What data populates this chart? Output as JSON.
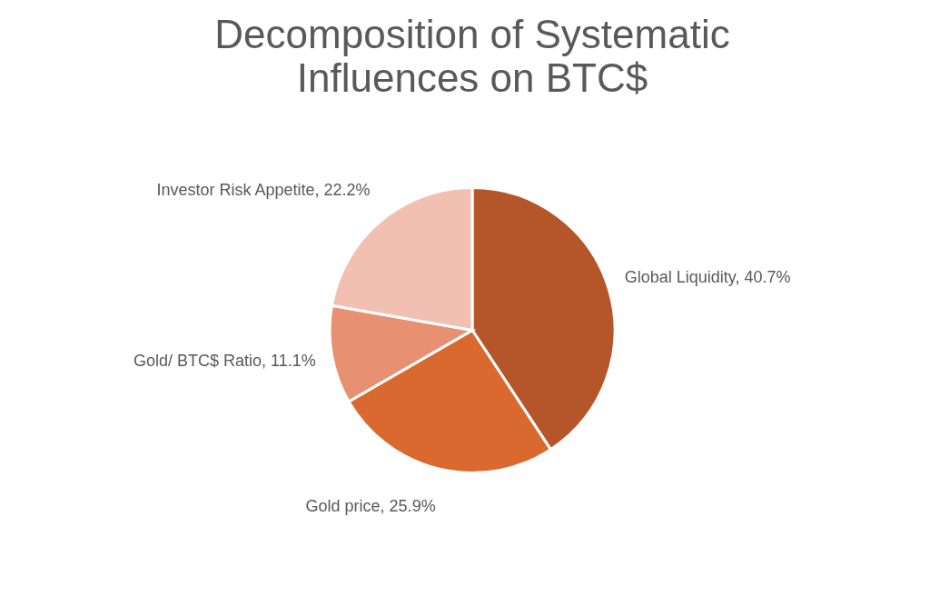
{
  "chart_data": {
    "type": "pie",
    "title": "Decomposition of Systematic Influences on BTC$",
    "categories": [
      "Global Liquidity",
      "Gold price",
      "Gold/ BTC$ Ratio",
      "Investor Risk Appetite"
    ],
    "values": [
      40.7,
      25.9,
      11.1,
      22.2
    ],
    "colors": [
      "#b5552a",
      "#d9692e",
      "#e89072",
      "#f1c0b3"
    ],
    "value_labels": [
      "40.7%",
      "25.9%",
      "11.1%",
      "22.2%"
    ],
    "legend": false
  }
}
